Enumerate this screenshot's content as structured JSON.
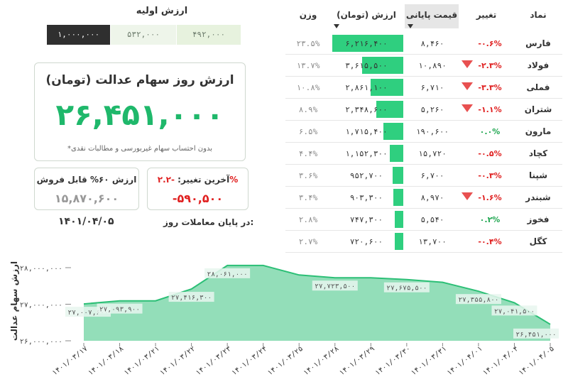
{
  "initial_value": {
    "title": "ارزش اولیه",
    "options": [
      "۱,۰۰۰,۰۰۰",
      "۵۳۲,۰۰۰",
      "۴۹۲,۰۰۰"
    ],
    "selected": "۱,۰۰۰,۰۰۰"
  },
  "main_card": {
    "title": "ارزش روز سهام عدالت (تومان)",
    "value": "۲۶,۴۵۱,۰۰۰",
    "note": "*بدون احتساب سهام غیربورسی و مطالبات نقدی"
  },
  "sell_card": {
    "label": "ارزش ۶۰% قابل فروش",
    "value": "۱۵,۸۷۰,۶۰۰"
  },
  "change_card": {
    "label": "آخرین تغییر:",
    "pct": "-۲.۲%",
    "value": "-۵۹۰,۵۰۰"
  },
  "date": {
    "label": "در پایان معاملات روز:",
    "value": "۱۴۰۱/۰۴/۰۵"
  },
  "colors": {
    "accent_green": "#1fb86b",
    "bar_green": "#2fcf7f",
    "negative_red": "#e02020",
    "positive_green": "#1fa650"
  },
  "table": {
    "headers": {
      "name": "نماد",
      "change": "تغییر",
      "price": "قیمت پایانی",
      "value": "ارزش (تومان)",
      "weight": "وزن"
    },
    "rows": [
      {
        "name": "فارس",
        "change": "-۰.۶%",
        "dir": "neg",
        "arrow": false,
        "price": "۸,۴۶۰",
        "value": "۶,۲۱۶,۴۰۰",
        "share": 1.0,
        "weight": "۲۳.۵%"
      },
      {
        "name": "فولاد",
        "change": "-۲.۳%",
        "dir": "neg",
        "arrow": true,
        "price": "۱۰,۸۹۰",
        "value": "۳,۶۱۵,۵۰۰",
        "share": 0.58,
        "weight": "۱۳.۷%"
      },
      {
        "name": "فملی",
        "change": "-۳.۳%",
        "dir": "neg",
        "arrow": true,
        "price": "۶,۷۱۰",
        "value": "۲,۸۶۱,۱۰۰",
        "share": 0.46,
        "weight": "۱۰.۸%"
      },
      {
        "name": "شتران",
        "change": "-۱.۱%",
        "dir": "neg",
        "arrow": true,
        "price": "۵,۲۶۰",
        "value": "۲,۳۴۸,۶۰۰",
        "share": 0.38,
        "weight": "۸.۹%"
      },
      {
        "name": "مارون",
        "change": "۰.۰%",
        "dir": "pos",
        "arrow": false,
        "price": "۱۹۰,۶۰۰",
        "value": "۱,۷۱۵,۴۰۰",
        "share": 0.28,
        "weight": "۶.۵%"
      },
      {
        "name": "کچاد",
        "change": "-۰.۵%",
        "dir": "neg",
        "arrow": false,
        "price": "۱۵,۷۲۰",
        "value": "۱,۱۵۲,۳۰۰",
        "share": 0.19,
        "weight": "۴.۴%"
      },
      {
        "name": "شپنا",
        "change": "-۰.۳%",
        "dir": "neg",
        "arrow": false,
        "price": "۶,۷۰۰",
        "value": "۹۵۲,۷۰۰",
        "share": 0.15,
        "weight": "۳.۶%"
      },
      {
        "name": "شبندر",
        "change": "-۱.۶%",
        "dir": "neg",
        "arrow": true,
        "price": "۸,۹۷۰",
        "value": "۹۰۳,۳۰۰",
        "share": 0.145,
        "weight": "۳.۴%"
      },
      {
        "name": "فخوز",
        "change": "۰.۲%",
        "dir": "pos",
        "arrow": false,
        "price": "۵,۵۴۰",
        "value": "۷۴۷,۳۰۰",
        "share": 0.12,
        "weight": "۲.۸%"
      },
      {
        "name": "کگل",
        "change": "-۰.۴%",
        "dir": "neg",
        "arrow": false,
        "price": "۱۳,۷۰۰",
        "value": "۷۲۰,۶۰۰",
        "share": 0.115,
        "weight": "۲.۷%"
      }
    ]
  },
  "chart_data": {
    "type": "area",
    "title": "",
    "xlabel": "",
    "ylabel": "ارزش سهام عدالت",
    "x": [
      "۱۴۰۱/۰۳/۱۷",
      "۱۴۰۱/۰۳/۱۸",
      "۱۴۰۱/۰۳/۲۱",
      "۱۴۰۱/۰۳/۲۲",
      "۱۴۰۱/۰۳/۲۳",
      "۱۴۰۱/۰۳/۲۴",
      "۱۴۰۱/۰۳/۲۵",
      "۱۴۰۱/۰۳/۲۸",
      "۱۴۰۱/۰۳/۲۹",
      "۱۴۰۱/۰۳/۳۰",
      "۱۴۰۱/۰۳/۳۱",
      "۱۴۰۱/۰۴/۰۱",
      "۱۴۰۱/۰۴/۰۴",
      "۱۴۰۱/۰۴/۰۵"
    ],
    "values": [
      27007600,
      27093900,
      27093900,
      27416300,
      28061000,
      28061000,
      27800000,
      27723500,
      27723500,
      27675500,
      27600000,
      27355800,
      27041500,
      26451000
    ],
    "point_labels": [
      "۲۷,۰۰۷,۶۰۰",
      "۲۷,۰۹۳,۹۰۰",
      "",
      "۲۷,۴۱۶,۳۰۰",
      "۲۸,۰۶۱,۰۰۰",
      "",
      "",
      "۲۷,۷۲۳,۵۰۰",
      "",
      "۲۷,۶۷۵,۵۰۰",
      "",
      "۲۷,۳۵۵,۸۰۰",
      "۲۷,۰۴۱,۵۰۰",
      "۲۶,۴۵۱,۰۰۰"
    ],
    "label_indices": [
      0,
      1,
      3,
      4,
      7,
      9,
      11,
      12,
      13
    ],
    "y_ticks": [
      26000000,
      27000000,
      28000000
    ],
    "y_tick_labels": [
      "۲۶,۰۰۰,۰۰۰",
      "۲۷,۰۰۰,۰۰۰",
      "۲۸,۰۰۰,۰۰۰"
    ],
    "ylim": [
      26000000,
      28000000
    ],
    "line_color": "#2cbf76",
    "fill_color": "#6fd3a2",
    "grid": false,
    "legend": "none"
  }
}
